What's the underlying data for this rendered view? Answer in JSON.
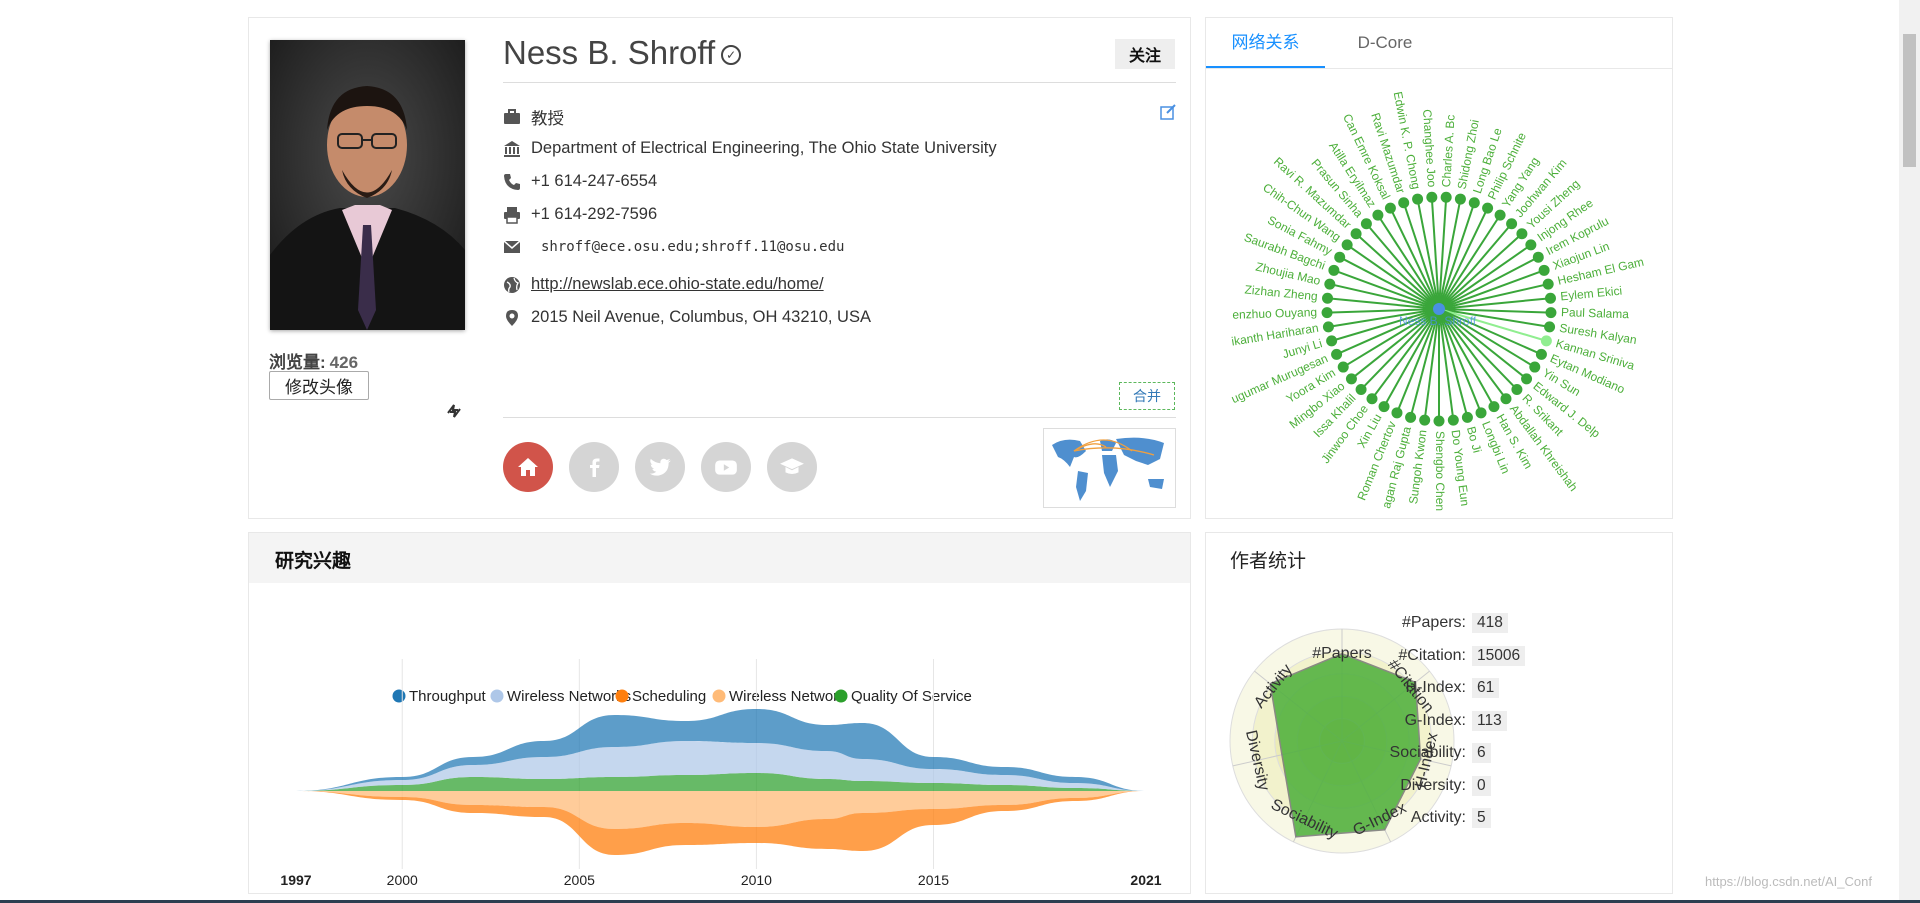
{
  "profile": {
    "name": "Ness B. Shroff",
    "verified_icon": "check-circle-icon",
    "follow_label": "关注",
    "views_label": "浏览量:",
    "views_count": "426",
    "change_avatar_label": "修改头像",
    "merge_label": "合并",
    "info": {
      "position": "教授",
      "affiliation": "Department of Electrical Engineering, The Ohio State University",
      "phone": "+1 614-247-6554",
      "fax": "+1 614-292-7596",
      "email": "shroff@ece.osu.edu;shroff.11@osu.edu",
      "homepage": "http://newslab.ece.ohio-state.edu/home/",
      "address": "2015 Neil Avenue, Columbus, OH 43210, USA"
    },
    "social_icons": [
      "home-icon",
      "facebook-icon",
      "twitter-icon",
      "youtube-icon",
      "scholar-icon"
    ]
  },
  "network": {
    "tabs": [
      "网络关系",
      "D-Core"
    ],
    "center": "Ness B. Shroff",
    "coauthors": [
      "Charles A. Bc",
      "Shidong Zhoi",
      "Long Bao Le",
      "Philip Schnite",
      "Yang Yang",
      "Joohwan Kim",
      "Yousi Zheng",
      "Injong Rhee",
      "Irem Koprulu",
      "Xiaojun Lin",
      "Hesham El Gam",
      "Eylem Ekici",
      "Paul Salama",
      "Suresh Kalyan",
      "Kannan Sriniva",
      "Eytan Modiano",
      "Yin Sun",
      "Edward J. Delp",
      "R. Srikant",
      "Abdallah Khreishah",
      "Han S. Kim",
      "Longbi Lin",
      "Bo Ji",
      "Do Young Eun",
      "Shengbo Chen",
      "Sungoh Kwon",
      "agan Raj Gupta",
      "Roman Chertov",
      "Xin Liu",
      "Jinwoo Choe",
      "Issa Khalil",
      "Mingbo Xiao",
      "Yoora Kim",
      "ugumar Murugesan",
      "Junyi Li",
      "ikanth Hariharan",
      "enzhuo Ouyang",
      "Zizhan Zheng",
      "Zhoujia Mao",
      "Saurabh Bagchi",
      "Sonia Fahmy",
      "Chih-Chun Wang",
      "Ravi R. Mazumdar",
      "Prasun Sinha",
      "Atilla Eryilmaz",
      "Can Emre Koksal",
      "Ravi Mazumdar",
      "Edwin K. P. Chong",
      "Changhee Joo"
    ],
    "highlight_color": "#90ee90",
    "node_color": "#3aa63a",
    "center_color": "#4a90e2"
  },
  "research": {
    "title": "研究兴趣",
    "chart_data": {
      "type": "area",
      "subtype": "streamgraph",
      "x": [
        1997,
        2000,
        2002,
        2004,
        2006,
        2008,
        2010,
        2012,
        2013,
        2015,
        2017,
        2019,
        2021
      ],
      "tick_labels": [
        "1997",
        "2000",
        "2005",
        "2010",
        "2015",
        "2021"
      ],
      "series": [
        {
          "name": "Throughput",
          "color": "#1f77b4",
          "values": [
            0,
            0.3,
            0.8,
            1.6,
            3.2,
            2.0,
            3.4,
            2.6,
            3.6,
            1.2,
            0.8,
            0.6,
            0
          ]
        },
        {
          "name": "Wireless Networks",
          "color": "#aec7e8",
          "values": [
            0,
            0.5,
            1.2,
            2.2,
            3.0,
            3.4,
            3.0,
            2.8,
            2.2,
            1.4,
            1.0,
            0.5,
            0
          ]
        },
        {
          "name": "Scheduling",
          "color": "#ff7f0e",
          "values": [
            0,
            0.3,
            0.8,
            1.0,
            2.6,
            2.2,
            1.6,
            3.0,
            3.8,
            1.6,
            0.6,
            0.3,
            0
          ]
        },
        {
          "name": "Wireless Network",
          "color": "#ffbb78",
          "values": [
            0,
            0.6,
            1.4,
            1.6,
            3.8,
            3.2,
            3.6,
            2.8,
            2.2,
            1.8,
            1.4,
            0.7,
            0
          ]
        },
        {
          "name": "Quality Of Service",
          "color": "#2ca02c",
          "values": [
            0,
            0.6,
            1.4,
            1.2,
            1.4,
            1.6,
            1.8,
            1.2,
            1.0,
            0.8,
            0.6,
            0.3,
            0
          ]
        }
      ],
      "xlim": [
        1997,
        2021
      ]
    }
  },
  "stats": {
    "title": "作者统计",
    "items": [
      {
        "label": "#Papers:",
        "value": "418"
      },
      {
        "label": "#Citation:",
        "value": "15006"
      },
      {
        "label": "H-Index:",
        "value": "61"
      },
      {
        "label": "G-Index:",
        "value": "113"
      },
      {
        "label": "Sociability:",
        "value": "6"
      },
      {
        "label": "Diversity:",
        "value": "0"
      },
      {
        "label": "Activity:",
        "value": "5"
      }
    ],
    "radar": {
      "axes": [
        "#Papers",
        "#Citation",
        "H-Index",
        "G-Index",
        "Sociability",
        "Diversity",
        "Activity"
      ],
      "levels": [
        0.78,
        0.84,
        0.72,
        0.88,
        0.95,
        0.55,
        0.82
      ],
      "fill_color": "#4caf3a"
    }
  },
  "watermark": "https://blog.csdn.net/AI_Conf"
}
